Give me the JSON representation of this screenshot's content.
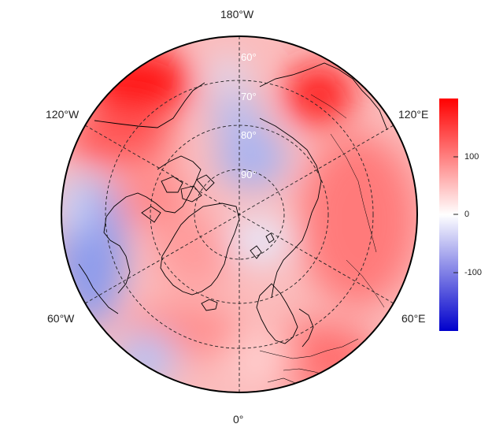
{
  "map": {
    "projection": "north-polar-stereographic",
    "longitude_labels": {
      "top": "180°W",
      "upper_left": "120°W",
      "upper_right": "120°E",
      "lower_left": "60°W",
      "lower_right": "60°E",
      "bottom": "0°"
    },
    "latitude_labels": [
      "90°",
      "80°",
      "70°",
      "60°"
    ],
    "graticule_style": "dashed",
    "coastlines_color": "#000000"
  },
  "colorbar": {
    "min": -200,
    "max": 200,
    "ticks": [
      {
        "value": 100,
        "label": "100"
      },
      {
        "value": 0,
        "label": "0"
      },
      {
        "value": -100,
        "label": "-100"
      }
    ],
    "colors": {
      "low": "#0000cc",
      "mid": "#ffffff",
      "high": "#ff0000"
    }
  }
}
